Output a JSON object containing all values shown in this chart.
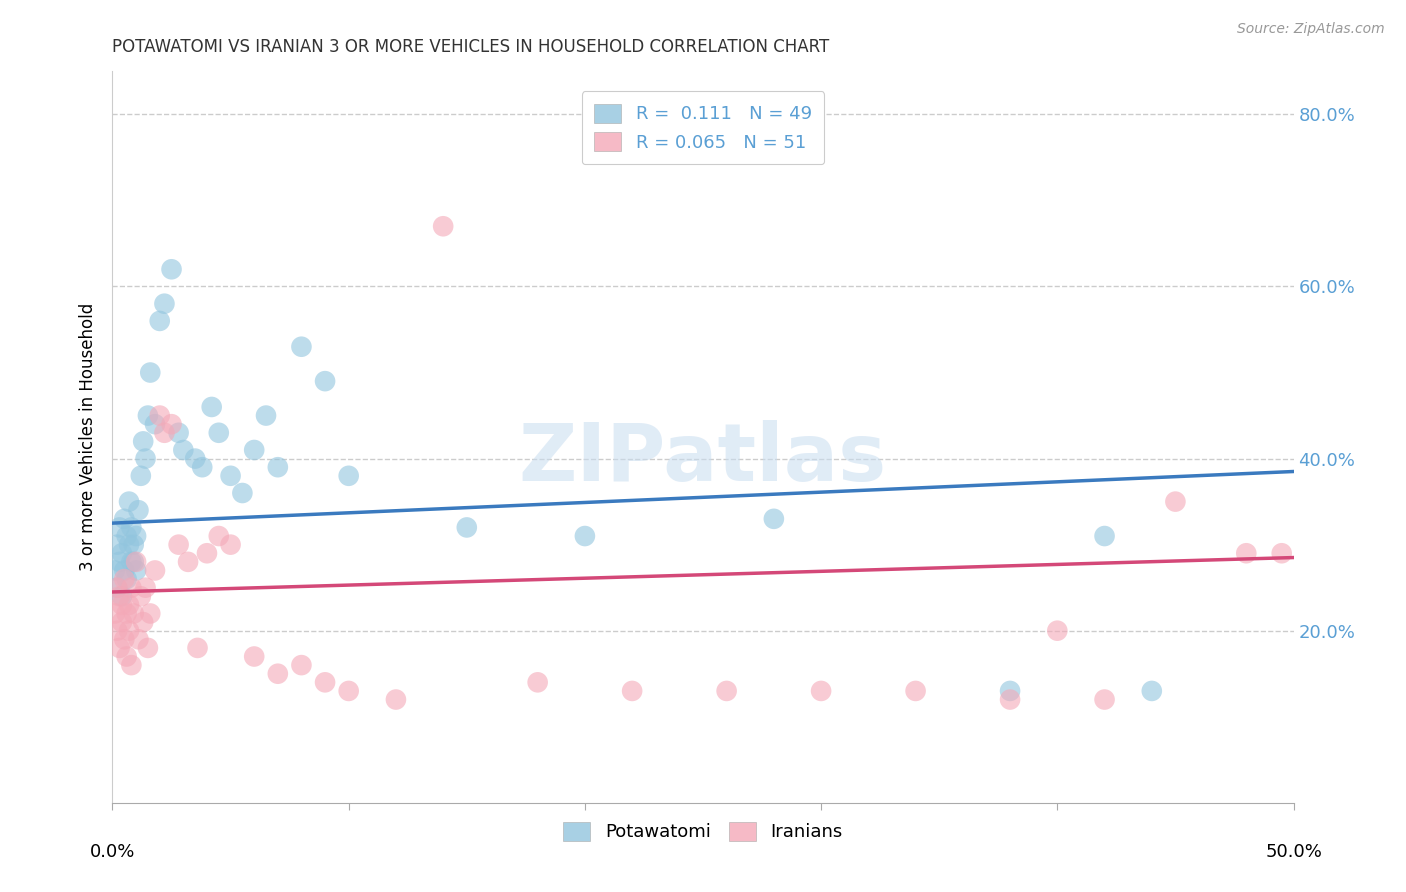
{
  "title": "POTAWATOMI VS IRANIAN 3 OR MORE VEHICLES IN HOUSEHOLD CORRELATION CHART",
  "source": "Source: ZipAtlas.com",
  "ylabel": "3 or more Vehicles in Household",
  "watermark": "ZIPatlas",
  "legend_blue_r": "0.111",
  "legend_blue_n": "49",
  "legend_pink_r": "0.065",
  "legend_pink_n": "51",
  "legend_label_blue": "Potawatomi",
  "legend_label_pink": "Iranians",
  "blue_color": "#92c5de",
  "pink_color": "#f4a9b8",
  "trend_blue_color": "#3a7abf",
  "trend_pink_color": "#d44878",
  "xlim": [
    0.0,
    0.5
  ],
  "ylim": [
    0.0,
    0.85
  ],
  "potawatomi_x": [
    0.001,
    0.002,
    0.002,
    0.003,
    0.003,
    0.004,
    0.004,
    0.005,
    0.005,
    0.006,
    0.006,
    0.007,
    0.007,
    0.008,
    0.008,
    0.009,
    0.009,
    0.01,
    0.01,
    0.011,
    0.012,
    0.013,
    0.014,
    0.015,
    0.016,
    0.018,
    0.02,
    0.022,
    0.025,
    0.028,
    0.03,
    0.035,
    0.038,
    0.042,
    0.045,
    0.05,
    0.055,
    0.06,
    0.065,
    0.07,
    0.08,
    0.09,
    0.1,
    0.15,
    0.2,
    0.28,
    0.38,
    0.42,
    0.44
  ],
  "potawatomi_y": [
    0.27,
    0.3,
    0.25,
    0.32,
    0.28,
    0.29,
    0.24,
    0.33,
    0.27,
    0.31,
    0.26,
    0.3,
    0.35,
    0.28,
    0.32,
    0.3,
    0.28,
    0.31,
    0.27,
    0.34,
    0.38,
    0.42,
    0.4,
    0.45,
    0.5,
    0.44,
    0.56,
    0.58,
    0.62,
    0.43,
    0.41,
    0.4,
    0.39,
    0.46,
    0.43,
    0.38,
    0.36,
    0.41,
    0.45,
    0.39,
    0.53,
    0.49,
    0.38,
    0.32,
    0.31,
    0.33,
    0.13,
    0.31,
    0.13
  ],
  "iranians_x": [
    0.001,
    0.002,
    0.002,
    0.003,
    0.003,
    0.004,
    0.004,
    0.005,
    0.005,
    0.006,
    0.006,
    0.007,
    0.007,
    0.008,
    0.008,
    0.009,
    0.01,
    0.011,
    0.012,
    0.013,
    0.014,
    0.015,
    0.016,
    0.018,
    0.02,
    0.022,
    0.025,
    0.028,
    0.032,
    0.036,
    0.04,
    0.045,
    0.05,
    0.06,
    0.07,
    0.08,
    0.09,
    0.1,
    0.12,
    0.14,
    0.18,
    0.22,
    0.26,
    0.3,
    0.34,
    0.38,
    0.4,
    0.42,
    0.45,
    0.48,
    0.495
  ],
  "iranians_y": [
    0.22,
    0.25,
    0.2,
    0.24,
    0.18,
    0.23,
    0.21,
    0.26,
    0.19,
    0.22,
    0.17,
    0.2,
    0.23,
    0.25,
    0.16,
    0.22,
    0.28,
    0.19,
    0.24,
    0.21,
    0.25,
    0.18,
    0.22,
    0.27,
    0.45,
    0.43,
    0.44,
    0.3,
    0.28,
    0.18,
    0.29,
    0.31,
    0.3,
    0.17,
    0.15,
    0.16,
    0.14,
    0.13,
    0.12,
    0.67,
    0.14,
    0.13,
    0.13,
    0.13,
    0.13,
    0.12,
    0.2,
    0.12,
    0.35,
    0.29,
    0.29
  ]
}
